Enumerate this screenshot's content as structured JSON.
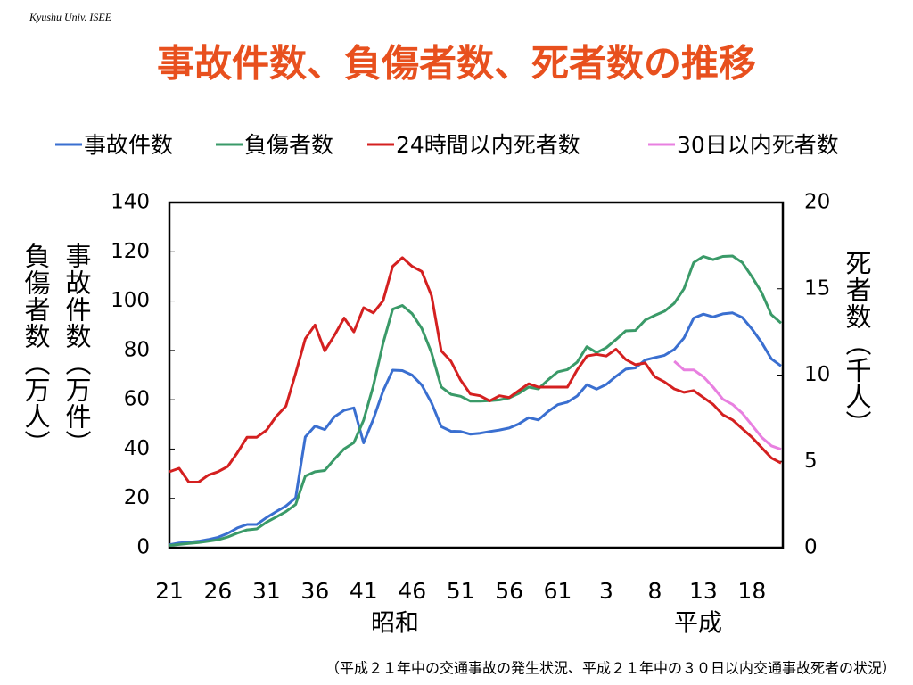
{
  "header": "Kyushu Univ. ISEE",
  "chart_data": {
    "type": "line",
    "title": "事故件数、負傷者数、死者数の推移",
    "y_label": "事故件数（万件）",
    "y_label_2": "負傷者数（万人）",
    "y2_label": "死者数（千人）",
    "x_groups": [
      "昭和",
      "平成"
    ],
    "source": "（平成２１年中の交通事故の発生状況、平成２１年中の３０日以内交通事故死者の状況）",
    "categories": [
      "21",
      null,
      null,
      null,
      null,
      "26",
      null,
      null,
      null,
      null,
      "31",
      null,
      null,
      null,
      null,
      "36",
      null,
      null,
      null,
      null,
      "41",
      null,
      null,
      null,
      null,
      "46",
      null,
      null,
      null,
      null,
      "51",
      null,
      null,
      null,
      null,
      "56",
      null,
      null,
      null,
      null,
      "61",
      null,
      null,
      null,
      null,
      "3",
      null,
      null,
      null,
      null,
      "8",
      null,
      null,
      null,
      null,
      "13",
      null,
      null,
      null,
      null,
      "18",
      null,
      null,
      null
    ],
    "ylim": [
      0,
      140
    ],
    "yticks": [
      0,
      20,
      40,
      60,
      80,
      100,
      120,
      140
    ],
    "y2lim": [
      0,
      20
    ],
    "y2ticks": [
      0,
      5,
      10,
      15,
      20
    ],
    "legend": "top",
    "series": [
      {
        "name": "事故件数",
        "color": "#3a6fd0",
        "values": [
          1.2,
          1.9,
          2.2,
          2.6,
          3.3,
          4.2,
          5.8,
          8.0,
          9.4,
          9.4,
          12.2,
          14.6,
          16.9,
          20.2,
          44.9,
          49.3,
          47.9,
          53.1,
          55.7,
          56.7,
          42.5,
          52.1,
          63.5,
          72.0,
          71.8,
          70.0,
          65.9,
          58.7,
          49.1,
          47.2,
          47.1,
          46.0,
          46.4,
          47.1,
          47.7,
          48.5,
          50.2,
          52.7,
          51.8,
          55.2,
          58.0,
          59.0,
          61.5,
          66.1,
          64.3,
          66.2,
          69.5,
          72.4,
          72.9,
          76.1,
          77.1,
          78.0,
          80.4,
          85.0,
          93.1,
          94.7,
          93.6,
          94.8,
          95.2,
          93.4,
          88.7,
          83.2,
          76.6,
          73.7
        ]
      },
      {
        "name": "負傷者数",
        "color": "#3a9a68",
        "values": [
          0.9,
          1.3,
          1.7,
          2.1,
          2.6,
          3.2,
          4.3,
          5.9,
          7.2,
          7.6,
          10.3,
          12.4,
          14.6,
          17.5,
          29.0,
          30.8,
          31.3,
          35.9,
          40.1,
          42.6,
          51.7,
          65.6,
          82.8,
          96.7,
          98.2,
          94.9,
          88.9,
          79.0,
          65.2,
          62.2,
          61.4,
          59.4,
          59.4,
          59.6,
          59.9,
          60.7,
          62.6,
          65.1,
          64.4,
          68.1,
          71.3,
          72.2,
          75.2,
          81.5,
          79.1,
          81.1,
          84.4,
          87.9,
          88.1,
          92.3,
          94.2,
          95.9,
          99.1,
          105.0,
          115.6,
          118.1,
          116.8,
          118.1,
          118.3,
          115.7,
          109.9,
          103.5,
          94.5,
          91.1
        ]
      },
      {
        "name": "24時間以内死者数",
        "color": "#d42020",
        "axis": "y2",
        "values": [
          4.4,
          4.6,
          3.8,
          3.8,
          4.2,
          4.4,
          4.7,
          5.5,
          6.4,
          6.4,
          6.8,
          7.6,
          8.2,
          10.1,
          12.1,
          12.9,
          11.4,
          12.3,
          13.3,
          12.5,
          13.9,
          13.6,
          14.3,
          16.3,
          16.8,
          16.3,
          16.0,
          14.6,
          11.4,
          10.8,
          9.7,
          8.9,
          8.8,
          8.5,
          8.8,
          8.7,
          9.1,
          9.5,
          9.3,
          9.3,
          9.3,
          9.3,
          10.3,
          11.1,
          11.2,
          11.1,
          11.5,
          10.9,
          10.6,
          10.7,
          9.9,
          9.6,
          9.2,
          9.0,
          9.1,
          8.7,
          8.3,
          7.7,
          7.4,
          6.9,
          6.4,
          5.8,
          5.2,
          4.9
        ]
      },
      {
        "name": "30日以内死者数",
        "color": "#e880e0",
        "axis": "y2",
        "values": [
          null,
          null,
          null,
          null,
          null,
          null,
          null,
          null,
          null,
          null,
          null,
          null,
          null,
          null,
          null,
          null,
          null,
          null,
          null,
          null,
          null,
          null,
          null,
          null,
          null,
          null,
          null,
          null,
          null,
          null,
          null,
          null,
          null,
          null,
          null,
          null,
          null,
          null,
          null,
          null,
          null,
          null,
          null,
          null,
          null,
          null,
          null,
          null,
          null,
          null,
          null,
          null,
          10.8,
          10.3,
          10.3,
          9.9,
          9.3,
          8.6,
          8.3,
          7.8,
          7.1,
          6.4,
          5.9,
          5.7
        ]
      }
    ]
  }
}
